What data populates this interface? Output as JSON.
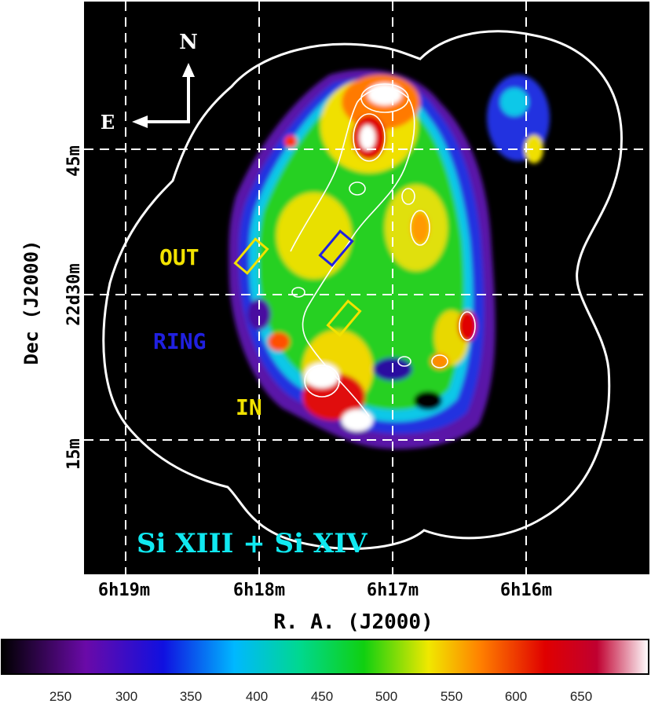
{
  "image": {
    "line_label": "Si XIII + Si XIV",
    "compass": {
      "north": "N",
      "east": "E"
    },
    "regions": {
      "out": "OUT",
      "ring": "RING",
      "in": "IN"
    },
    "x_axis": {
      "title": "R. A. (J2000)",
      "ticks": [
        "6h19m",
        "6h18m",
        "6h17m",
        "6h16m"
      ]
    },
    "y_axis": {
      "title": "Dec (J2000)",
      "ticks": [
        "45m",
        "22d30m",
        "15m"
      ]
    },
    "colorbar": {
      "ticks": [
        "250",
        "300",
        "350",
        "400",
        "450",
        "500",
        "550",
        "600",
        "650"
      ],
      "stops": [
        "#000000",
        "#6a0aa8",
        "#1010e0",
        "#00b8ff",
        "#00d890",
        "#10d010",
        "#f0e800",
        "#ff8000",
        "#e00000",
        "#ffffff"
      ]
    },
    "colors": {
      "background": "#000000",
      "grid": "#ffffff",
      "contour": "#ffffff",
      "label_yellow": "#f2e200",
      "label_blue": "#2020e0",
      "label_cyan": "#10e8f0"
    }
  }
}
